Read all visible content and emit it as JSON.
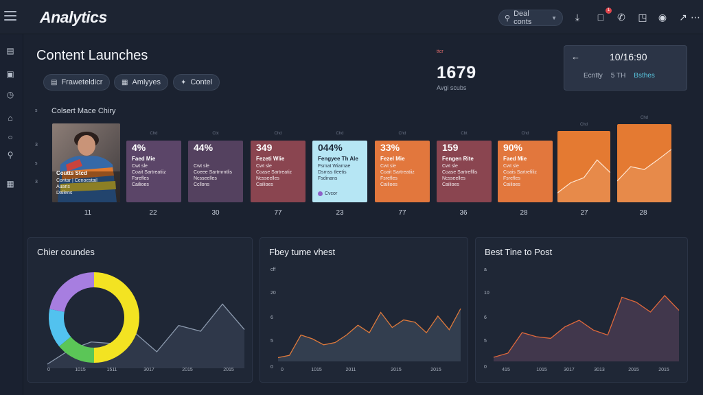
{
  "header": {
    "logo": "Analytics",
    "search": {
      "value": "Deal conts",
      "icon": "search-icon"
    }
  },
  "toolbar": {
    "icons": [
      "download-icon",
      "notification-icon",
      "phone-icon",
      "lock-icon",
      "profile-icon",
      "share-icon",
      "more-icon"
    ],
    "badge_count": "1"
  },
  "sidebar": {
    "icons": [
      "dashboard-icon",
      "image-icon",
      "clock-icon",
      "home-icon",
      "circle-icon",
      "search-icon",
      "building-icon"
    ]
  },
  "page": {
    "title": "Content Launches",
    "filters": [
      {
        "label": "Fraweteldicr",
        "icon": "calendar-icon"
      },
      {
        "label": "Amlyyes",
        "icon": "chart-icon"
      },
      {
        "label": "Contel",
        "icon": "bird-icon"
      }
    ]
  },
  "kpi": {
    "label": "ttcr",
    "value": "1679",
    "sub": "Avgi scubs"
  },
  "date_card": {
    "date": "10/16:90",
    "items": [
      "Ecntty",
      "5 TH",
      "Bsthes"
    ]
  },
  "timeline": {
    "label": "Colsert Mace Chiry",
    "y_ticks": [
      "s",
      "3",
      "s",
      "3"
    ],
    "photo_card": {
      "title": "Coutts Stcd",
      "lines": [
        "Coritar | Cenoestail",
        "Auaris",
        "Dallens"
      ]
    },
    "cards": [
      {
        "caption": "Chd",
        "pct": "4%",
        "title": "Faed Mie",
        "lines": [
          "Cwt sle",
          "Coait Sartreatiiz",
          "Fsrefles",
          "Cailioes"
        ],
        "color": "#5b4568"
      },
      {
        "caption": "Cbt",
        "pct": "44%",
        "title": "",
        "lines": [
          "Cwt sle",
          "Coeee Sartmrntlis",
          "Ncsseelles",
          "Ccllons"
        ],
        "color": "#54415f"
      },
      {
        "caption": "Chd",
        "pct": "349",
        "title": "Fezeti Wlie",
        "lines": [
          "Cwt sle",
          "Coase Sartreatiz",
          "Ncsseelles",
          "Cailioes"
        ],
        "color": "#8a4550"
      },
      {
        "caption": "Chd",
        "pct": "044%",
        "title": "Fengyee Th Ale",
        "lines": [
          "Fsmat Wiarnae",
          "Dsmss tleetis",
          "Fsdinans"
        ],
        "badge": "Cvcor",
        "color": "#b6e6f4"
      },
      {
        "caption": "Chd",
        "pct": "33%",
        "title": "Fezel Mie",
        "lines": [
          "Cwt sle",
          "Coait Sartreatiiz",
          "Fsrefles",
          "Cailioes"
        ],
        "color": "#e2773d"
      },
      {
        "caption": "Cbt",
        "pct": "159",
        "title": "Fengen Rite",
        "lines": [
          "Cwt sle",
          "Coase Sartrefllis",
          "Ncsseelles",
          "Cailioes"
        ],
        "color": "#8a4550"
      },
      {
        "caption": "Chd",
        "pct": "90%",
        "title": "Faed Mie",
        "lines": [
          "Cwt sle",
          "Coais Sartrefiliz",
          "Fsrefles",
          "Cailioes"
        ],
        "color": "#e2773d"
      }
    ],
    "chart_cards": [
      {
        "caption": "Chd",
        "values": [
          0.05,
          0.25,
          0.35,
          0.7,
          0.45
        ],
        "color": "#e47a32"
      },
      {
        "caption": "Chd",
        "values": [
          0.25,
          0.5,
          0.45,
          0.62,
          0.8
        ],
        "color": "#e47a32"
      }
    ],
    "x_labels": [
      "11",
      "22",
      "30",
      "77",
      "23",
      "77",
      "36",
      "28",
      "27",
      "28"
    ]
  },
  "panels": [
    {
      "title": "Chier coundes",
      "x_labels": [
        "0",
        "1015",
        "1511",
        "3017",
        "2015",
        "2015"
      ],
      "donut": [
        {
          "value": 50,
          "color": "#f3e322"
        },
        {
          "value": 14,
          "color": "#5bc657"
        },
        {
          "value": 14,
          "color": "#52c2ef"
        },
        {
          "value": 22,
          "color": "#a77ee0"
        }
      ],
      "series": [
        0.05,
        0.22,
        0.32,
        0.3,
        0.43,
        0.2,
        0.52,
        0.45,
        0.78,
        0.47
      ]
    },
    {
      "title": "Fbey tume vhest",
      "x_labels": [
        "0",
        "1015",
        "2011",
        "2015",
        "2015"
      ],
      "y_ticks": [
        "cff",
        "20",
        "6",
        "5",
        "0"
      ],
      "series": [
        0.05,
        0.08,
        0.35,
        0.3,
        0.22,
        0.25,
        0.35,
        0.48,
        0.38,
        0.65,
        0.45,
        0.55,
        0.52,
        0.38,
        0.6,
        0.42,
        0.7
      ]
    },
    {
      "title": "Best Tine to Post",
      "x_labels": [
        "415",
        "1015",
        "3017",
        "3013",
        "2015",
        "2015"
      ],
      "y_ticks": [
        "a",
        "10",
        "6",
        "5",
        "0"
      ],
      "series": [
        0.05,
        0.1,
        0.35,
        0.3,
        0.28,
        0.42,
        0.5,
        0.38,
        0.32,
        0.78,
        0.72,
        0.6,
        0.8,
        0.62
      ]
    }
  ],
  "colors": {
    "background": "#1b2230",
    "panel": "#1f2736",
    "accent": "#e47a32",
    "teal": "#58c4dd"
  }
}
